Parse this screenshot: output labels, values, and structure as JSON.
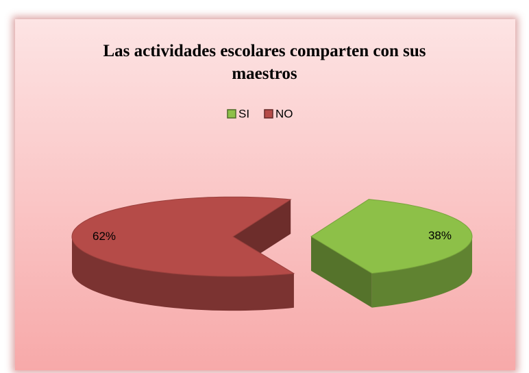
{
  "chart_data": {
    "type": "pie",
    "title": "Las actividades escolares comparten con sus maestros",
    "categories": [
      "SI",
      "NO"
    ],
    "values": [
      38,
      62
    ],
    "value_labels": [
      "38%",
      "62%"
    ],
    "colors": [
      "#8dc048",
      "#b54b48"
    ],
    "legend": "top"
  }
}
